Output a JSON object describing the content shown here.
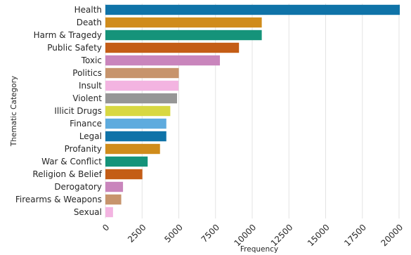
{
  "chart_data": {
    "type": "bar",
    "orientation": "horizontal",
    "title": "",
    "xlabel": "Frequency",
    "ylabel": "Thematic Category",
    "xlim": [
      0,
      20000
    ],
    "xticks": [
      0,
      2500,
      5000,
      7500,
      10000,
      12500,
      15000,
      17500,
      20000
    ],
    "xtick_labels": [
      "0",
      "2500",
      "5000",
      "7500",
      "10000",
      "12500",
      "15000",
      "17500",
      "20000"
    ],
    "grid": "vertical",
    "categories": [
      "Health",
      "Death",
      "Harm & Tragedy",
      "Public Safety",
      "Toxic",
      "Politics",
      "Insult",
      "Violent",
      "Illicit Drugs",
      "Finance",
      "Legal",
      "Profanity",
      "War & Conflict",
      "Religion & Belief",
      "Derogatory",
      "Firearms & Weapons",
      "Sexual"
    ],
    "values": [
      20050,
      10650,
      10650,
      9100,
      7800,
      5000,
      4980,
      4880,
      4420,
      4150,
      4150,
      3720,
      2880,
      2520,
      1200,
      1080,
      520
    ],
    "colors": [
      "#0f73a8",
      "#d08c1b",
      "#15937a",
      "#c45d16",
      "#c985bc",
      "#c7946c",
      "#f3b4e1",
      "#969696",
      "#d8d842",
      "#5eabde",
      "#0f73a8",
      "#d08c1b",
      "#15937a",
      "#c45d16",
      "#c985bc",
      "#c7946c",
      "#f3b4e1"
    ]
  }
}
